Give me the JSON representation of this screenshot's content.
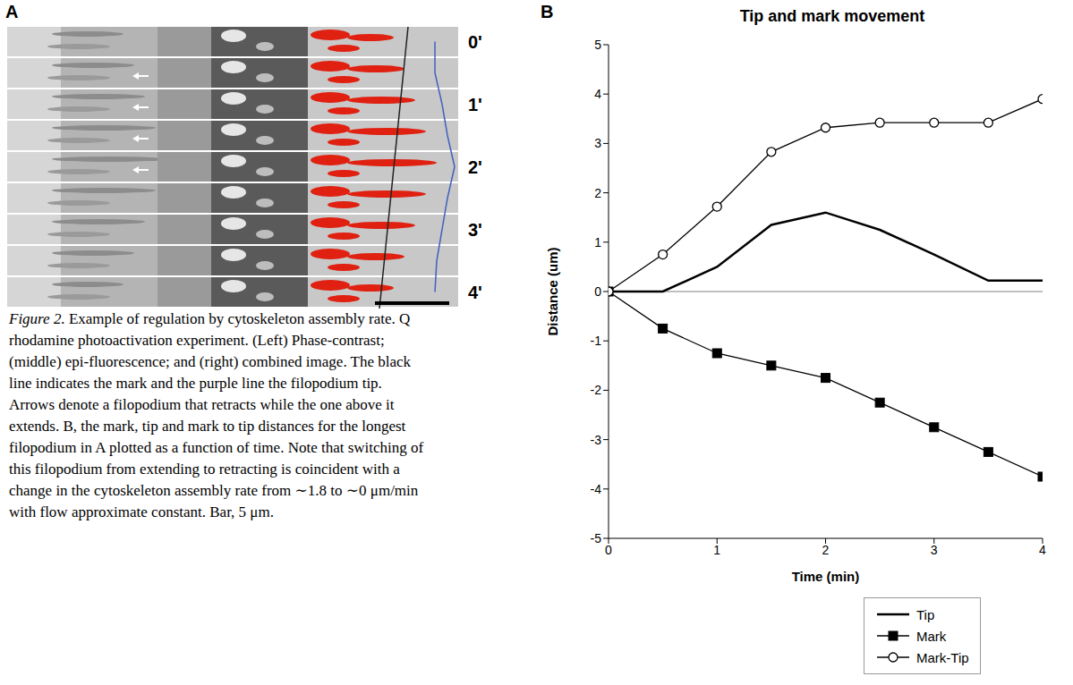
{
  "panel_labels": [
    "A",
    "B"
  ],
  "panel_a": {
    "time_labels": [
      "0'",
      "1'",
      "2'",
      "3'",
      "4'"
    ]
  },
  "caption": {
    "figure_label": "Figure 2.",
    "text": "Example of regulation by cytoskeleton assembly rate. Q rhodamine photoactivation experiment. (Left) Phase-contrast; (middle) epi-fluorescence; and (right) combined image. The black line indicates the mark and the purple line the filopodium tip. Arrows denote a filopodium that retracts while the one above it extends. B, the mark, tip and mark to tip distances for the longest filopodium in A plotted as a function of time. Note that switching of this filopodium from extending to retracting is coincident with a change in the cytoskeleton assembly rate from ∼1.8 to ∼0 μm/min with flow approximate constant. Bar, 5 μm."
  },
  "chart_data": {
    "type": "line",
    "title": "Tip and mark movement",
    "xlabel": "Time (min)",
    "ylabel": "Distance (um)",
    "x": [
      0,
      0.5,
      1,
      1.5,
      2,
      2.5,
      3,
      3.5,
      4
    ],
    "series": [
      {
        "name": "Tip",
        "color": "#000000",
        "marker": "none",
        "values": [
          0,
          0,
          0.5,
          1.35,
          1.6,
          1.25,
          0.75,
          0.22,
          0.22
        ]
      },
      {
        "name": "Mark",
        "color": "#000000",
        "marker": "square",
        "values": [
          0,
          -0.75,
          -1.25,
          -1.5,
          -1.75,
          -2.25,
          -2.75,
          -3.25,
          -3.75
        ]
      },
      {
        "name": "Mark-Tip",
        "color": "#000000",
        "marker": "circle",
        "values": [
          0,
          0.75,
          1.72,
          2.83,
          3.32,
          3.42,
          3.42,
          3.42,
          3.9
        ]
      }
    ],
    "xlim": [
      0,
      4
    ],
    "xticks": [
      0,
      1,
      2,
      3,
      4
    ],
    "ylim": [
      -5,
      5
    ],
    "yticks": [
      -5,
      -4,
      -3,
      -2,
      -1,
      0,
      1,
      2,
      3,
      4,
      5
    ],
    "grid": false,
    "legend": "bottom"
  }
}
